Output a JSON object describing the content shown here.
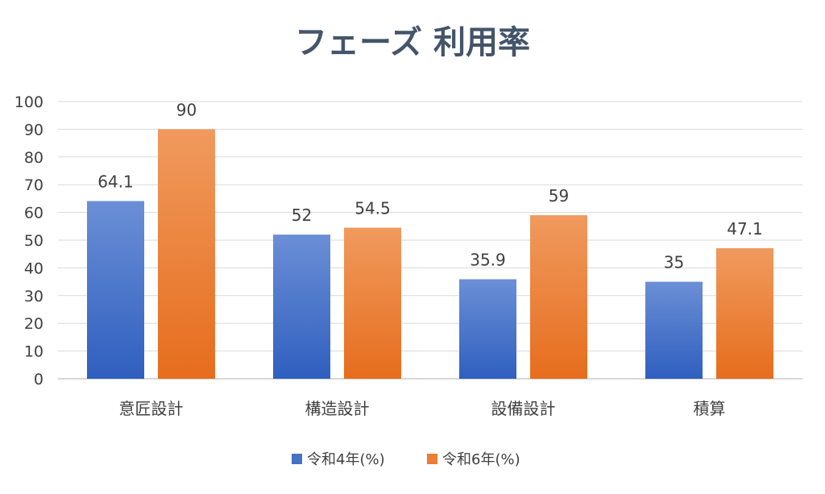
{
  "chart_data": {
    "type": "bar",
    "title": "フェーズ 利用率",
    "categories": [
      "意匠設計",
      "構造設計",
      "設備設計",
      "積算"
    ],
    "series": [
      {
        "name": "令和4年(%)",
        "values": [
          64.1,
          52,
          35.9,
          35
        ],
        "labels": [
          "64.1",
          "52",
          "35.9",
          "35"
        ],
        "color": "#4472c4"
      },
      {
        "name": "令和6年(%)",
        "values": [
          90,
          54.5,
          59,
          47.1
        ],
        "labels": [
          "90",
          "54.5",
          "59",
          "47.1"
        ],
        "color": "#ed7d31"
      }
    ],
    "yticks": [
      "0",
      "10",
      "20",
      "30",
      "40",
      "50",
      "60",
      "70",
      "80",
      "90",
      "100"
    ],
    "ylim": [
      0,
      100
    ],
    "grid": true,
    "legend": "bottom"
  }
}
